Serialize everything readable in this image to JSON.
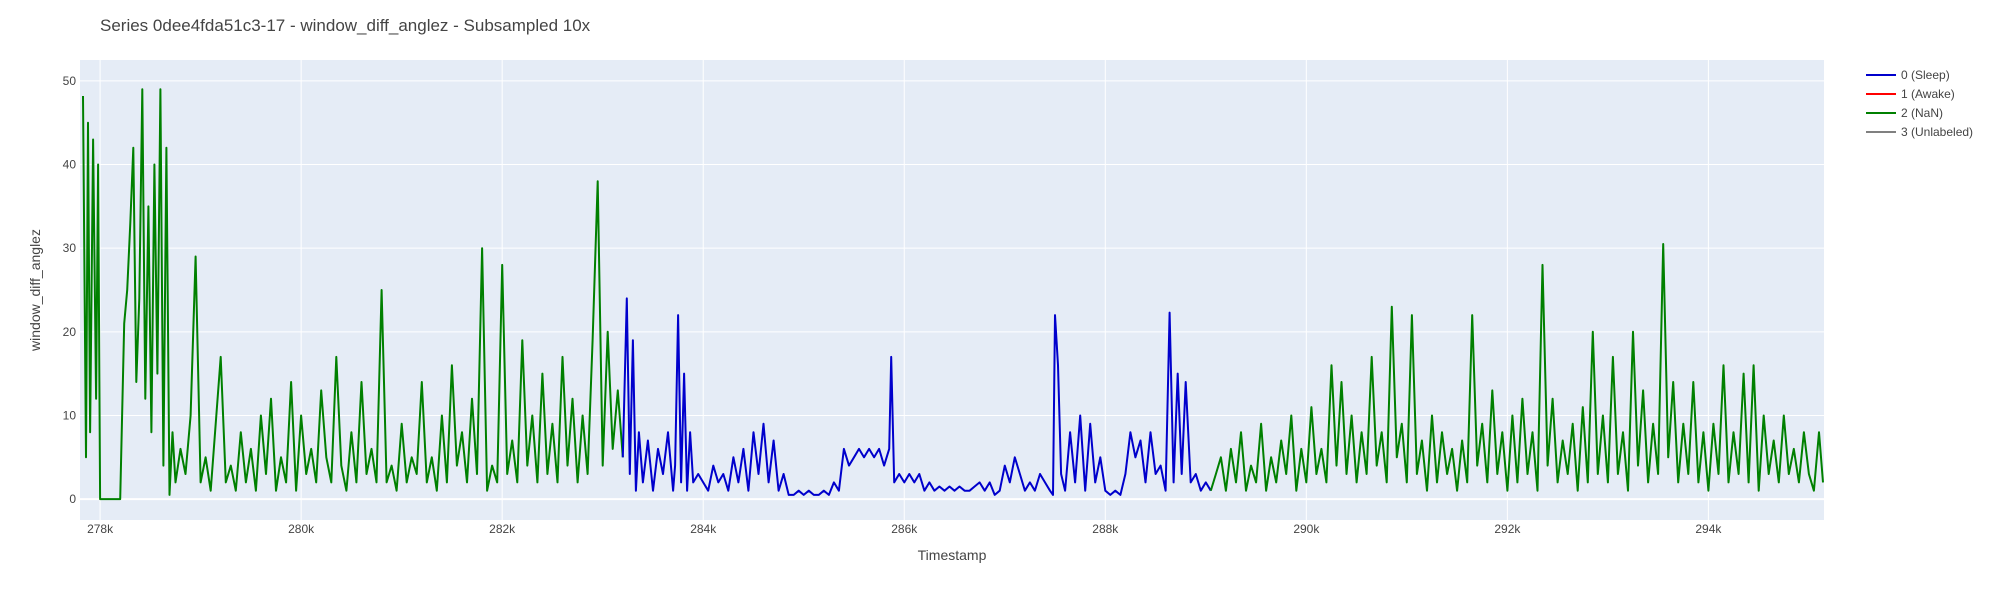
{
  "chart_data": {
    "type": "line",
    "title": "Series 0dee4fda51c3-17 - window_diff_anglez - Subsampled 10x",
    "xlabel": "Timestamp",
    "ylabel": "window_diff_anglez",
    "xlim": [
      277800,
      295150
    ],
    "ylim": [
      -2.5,
      52.5
    ],
    "xticks": [
      278000,
      280000,
      282000,
      284000,
      286000,
      288000,
      290000,
      292000,
      294000
    ],
    "xtick_labels": [
      "278k",
      "280k",
      "282k",
      "284k",
      "286k",
      "288k",
      "290k",
      "292k",
      "294k"
    ],
    "yticks": [
      0,
      10,
      20,
      30,
      40,
      50
    ],
    "ytick_labels": [
      "0",
      "10",
      "20",
      "30",
      "40",
      "50"
    ],
    "grid": true,
    "legend_position": "top-right",
    "legend": [
      {
        "name": "0 (Sleep)",
        "color": "#0000cc"
      },
      {
        "name": "1 (Awake)",
        "color": "#ff0000"
      },
      {
        "name": "2 (NaN)",
        "color": "#008000"
      },
      {
        "name": "3 (Unlabeled)",
        "color": "#808080"
      }
    ],
    "series": [
      {
        "name": "2 (NaN)",
        "color": "#008000",
        "x": [
          277830,
          277860,
          277880,
          277900,
          277930,
          277960,
          277980,
          278000,
          278030,
          278060,
          278100,
          278150,
          278200,
          278240,
          278270,
          278300,
          278330,
          278360,
          278390,
          278420,
          278450,
          278480,
          278510,
          278540,
          278570,
          278600,
          278630,
          278660,
          278690,
          278720,
          278750,
          278800,
          278850,
          278900,
          278950,
          279000,
          279050,
          279100,
          279150,
          279200,
          279250,
          279300,
          279350,
          279400,
          279450,
          279500,
          279550,
          279600,
          279650,
          279700,
          279750,
          279800,
          279850,
          279900,
          279950,
          280000,
          280050,
          280100,
          280150,
          280200,
          280250,
          280300,
          280350,
          280400,
          280450,
          280500,
          280550,
          280600,
          280650,
          280700,
          280750,
          280800,
          280850,
          280900,
          280950,
          281000,
          281050,
          281100,
          281150,
          281200,
          281250,
          281300,
          281350,
          281400,
          281450,
          281500,
          281550,
          281600,
          281650,
          281700,
          281750,
          281800,
          281850,
          281900,
          281950,
          282000,
          282050,
          282100,
          282150,
          282200,
          282250,
          282300,
          282350,
          282400,
          282450,
          282500,
          282550,
          282600,
          282650,
          282700,
          282750,
          282800,
          282850,
          282900,
          282950,
          283000,
          283050,
          283100,
          283150,
          283200
        ],
        "y": [
          48.2,
          5,
          45,
          8,
          43,
          12,
          40,
          0,
          0,
          0,
          0,
          0,
          0,
          21,
          25,
          33,
          42,
          14,
          24,
          49,
          12,
          35,
          8,
          40,
          15,
          49,
          4,
          42,
          0.5,
          8,
          2,
          6,
          3,
          10,
          29,
          2,
          5,
          1,
          9,
          17,
          2,
          4,
          1,
          8,
          2,
          6,
          1,
          10,
          3,
          12,
          1,
          5,
          2,
          14,
          1,
          10,
          3,
          6,
          2,
          13,
          5,
          2,
          17,
          4,
          1,
          8,
          2,
          14,
          3,
          6,
          2,
          25,
          2,
          4,
          1,
          9,
          2,
          5,
          3,
          14,
          2,
          5,
          1,
          10,
          2,
          16,
          4,
          8,
          2,
          12,
          3,
          30,
          1,
          4,
          2,
          28,
          3,
          7,
          2,
          19,
          4,
          10,
          2,
          15,
          3,
          9,
          2,
          17,
          4,
          12,
          2,
          10,
          3,
          19,
          38,
          4,
          20,
          6,
          13,
          5
        ]
      },
      {
        "name": "0 (Sleep)",
        "color": "#0000cc",
        "x": [
          283200,
          283240,
          283270,
          283300,
          283330,
          283360,
          283400,
          283450,
          283500,
          283550,
          283600,
          283650,
          283700,
          283720,
          283750,
          283780,
          283810,
          283840,
          283870,
          283900,
          283950,
          284000,
          284050,
          284100,
          284150,
          284200,
          284250,
          284300,
          284350,
          284400,
          284450,
          284500,
          284550,
          284600,
          284650,
          284700,
          284750,
          284800,
          284850,
          284900,
          284950,
          285000,
          285050,
          285100,
          285150,
          285200,
          285250,
          285300,
          285350,
          285400,
          285450,
          285500,
          285550,
          285600,
          285650,
          285700,
          285750,
          285800,
          285850,
          285870,
          285900,
          285950,
          286000,
          286050,
          286100,
          286150,
          286200,
          286250,
          286300,
          286350,
          286400,
          286450,
          286500,
          286550,
          286600,
          286650,
          286700,
          286750,
          286800,
          286850,
          286900,
          286950,
          287000,
          287050,
          287100,
          287150,
          287200,
          287250,
          287300,
          287350,
          287400,
          287450,
          287480,
          287500,
          287530,
          287560,
          287600,
          287650,
          287700,
          287750,
          287800,
          287850,
          287900,
          287950,
          288000,
          288050,
          288100,
          288150,
          288200,
          288250,
          288300,
          288350,
          288400,
          288450,
          288500,
          288550,
          288600,
          288640,
          288680,
          288720,
          288760,
          288800,
          288850,
          288900,
          288950,
          289000,
          289050
        ],
        "y": [
          5,
          24,
          3,
          19,
          1,
          8,
          2,
          7,
          1,
          6,
          3,
          8,
          1,
          4,
          22,
          2,
          15,
          1,
          8,
          2,
          3,
          2,
          1,
          4,
          2,
          3,
          1,
          5,
          2,
          6,
          1,
          8,
          3,
          9,
          2,
          7,
          1,
          3,
          0.5,
          0.5,
          1,
          0.5,
          1,
          0.5,
          0.5,
          1,
          0.5,
          2,
          1,
          6,
          4,
          5,
          6,
          5,
          6,
          5,
          6,
          4,
          6,
          17,
          2,
          3,
          2,
          3,
          2,
          3,
          1,
          2,
          1,
          1.5,
          1,
          1.5,
          1,
          1.5,
          1,
          1,
          1.5,
          2,
          1,
          2,
          0.5,
          1,
          4,
          2,
          5,
          3,
          1,
          2,
          1,
          3,
          2,
          1,
          0.5,
          22,
          16,
          3,
          1,
          8,
          2,
          10,
          1,
          9,
          2,
          5,
          1,
          0.5,
          1,
          0.5,
          3,
          8,
          5,
          7,
          2,
          8,
          3,
          4,
          1,
          22.3,
          2,
          15,
          3,
          14,
          2,
          3,
          1,
          2,
          1
        ]
      },
      {
        "name": "2 (NaN)",
        "color": "#008000",
        "x": [
          289050,
          289100,
          289150,
          289200,
          289250,
          289300,
          289350,
          289400,
          289450,
          289500,
          289550,
          289600,
          289650,
          289700,
          289750,
          289800,
          289850,
          289900,
          289950,
          290000,
          290050,
          290100,
          290150,
          290200,
          290250,
          290300,
          290350,
          290400,
          290450,
          290500,
          290550,
          290600,
          290650,
          290700,
          290750,
          290800,
          290850,
          290900,
          290950,
          291000,
          291050,
          291100,
          291150,
          291200,
          291250,
          291300,
          291350,
          291400,
          291450,
          291500,
          291550,
          291600,
          291650,
          291700,
          291750,
          291800,
          291850,
          291900,
          291950,
          292000,
          292050,
          292100,
          292150,
          292200,
          292250,
          292300,
          292350,
          292400,
          292450,
          292500,
          292550,
          292600,
          292650,
          292700,
          292750,
          292800,
          292850,
          292900,
          292950,
          293000,
          293050,
          293100,
          293150,
          293200,
          293250,
          293300,
          293350,
          293400,
          293450,
          293500,
          293550,
          293600,
          293650,
          293700,
          293750,
          293800,
          293850,
          293900,
          293950,
          294000,
          294050,
          294100,
          294150,
          294200,
          294250,
          294300,
          294350,
          294400,
          294450,
          294500,
          294550,
          294600,
          294650,
          294700,
          294750,
          294800,
          294850,
          294900,
          294950,
          295000,
          295050,
          295100,
          295140
        ],
        "y": [
          1,
          3,
          5,
          1,
          6,
          2,
          8,
          1,
          4,
          2,
          9,
          1,
          5,
          2,
          7,
          3,
          10,
          1,
          6,
          2,
          11,
          3,
          6,
          2,
          16,
          4,
          14,
          3,
          10,
          2,
          8,
          3,
          17,
          4,
          8,
          2,
          23,
          5,
          9,
          2,
          22,
          3,
          7,
          1,
          10,
          2,
          8,
          3,
          6,
          1,
          7,
          2,
          22,
          4,
          9,
          2,
          13,
          3,
          8,
          1,
          10,
          2,
          12,
          3,
          8,
          1,
          28,
          4,
          12,
          2,
          7,
          3,
          9,
          1,
          11,
          2,
          20,
          3,
          10,
          2,
          17,
          3,
          8,
          1,
          20,
          4,
          13,
          2,
          9,
          3,
          30.5,
          5,
          14,
          2,
          9,
          3,
          14,
          2,
          8,
          1,
          9,
          3,
          16,
          2,
          8,
          3,
          15,
          2,
          16,
          1,
          10,
          3,
          7,
          2,
          10,
          3,
          6,
          2,
          8,
          3,
          1,
          8,
          2
        ]
      }
    ]
  }
}
